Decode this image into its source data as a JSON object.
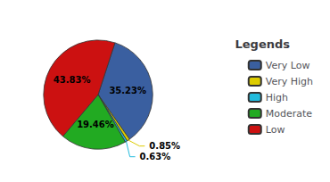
{
  "chart_data": {
    "type": "pie",
    "title": "Legends",
    "categories": [
      "Very Low",
      "Very High",
      "High",
      "Moderate",
      "Low"
    ],
    "values": [
      35.23,
      0.85,
      0.63,
      19.46,
      43.83
    ],
    "value_labels": [
      "35.23%",
      "0.85%",
      "0.63%",
      "19.46%",
      "43.83%"
    ],
    "colors": [
      "#3a5fa0",
      "#ddcc00",
      "#22bbdd",
      "#22aa22",
      "#cc1111"
    ],
    "data_labels": true,
    "legend": "right"
  }
}
